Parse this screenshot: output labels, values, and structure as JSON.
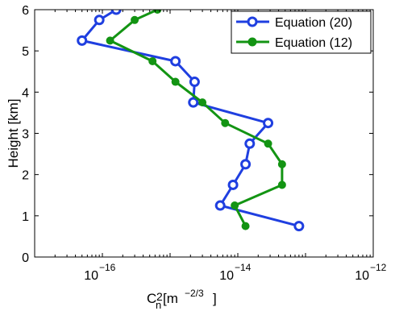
{
  "chart_data": {
    "type": "line",
    "xlabel": "C",
    "xlabel_sub": "n",
    "xlabel_sup": "2",
    "xlabel_unit_open": " [m",
    "xlabel_unit_exp": "−2/3",
    "xlabel_unit_close": "]",
    "ylabel": "Height [km]",
    "xscale": "log",
    "xlim": [
      1e-17,
      1e-12
    ],
    "ylim": [
      0,
      6
    ],
    "x_tick_labels": [
      {
        "value": 1e-16,
        "base": "10",
        "exp": "−16"
      },
      {
        "value": 1e-14,
        "base": "10",
        "exp": "−14"
      },
      {
        "value": 1e-12,
        "base": "10",
        "exp": "−12"
      }
    ],
    "y_ticks": [
      0,
      1,
      2,
      3,
      4,
      5,
      6
    ],
    "grid": false,
    "legend_position": "top-right",
    "series": [
      {
        "name": "Equation (20)",
        "color": "#1f3fe0",
        "marker": "open-circle",
        "points": [
          {
            "x": 8e-14,
            "y": 0.75
          },
          {
            "x": 5.5e-15,
            "y": 1.25
          },
          {
            "x": 8.5e-15,
            "y": 1.75
          },
          {
            "x": 1.3e-14,
            "y": 2.25
          },
          {
            "x": 1.5e-14,
            "y": 2.75
          },
          {
            "x": 2.8e-14,
            "y": 3.25
          },
          {
            "x": 2.2e-15,
            "y": 3.75
          },
          {
            "x": 2.3e-15,
            "y": 4.25
          },
          {
            "x": 1.2e-15,
            "y": 4.75
          },
          {
            "x": 5e-17,
            "y": 5.25
          },
          {
            "x": 9e-17,
            "y": 5.75
          },
          {
            "x": 1.6e-16,
            "y": 6.0
          }
        ]
      },
      {
        "name": "Equation (12)",
        "color": "#139413",
        "marker": "filled-circle",
        "points": [
          {
            "x": 1.3e-14,
            "y": 0.75
          },
          {
            "x": 9e-15,
            "y": 1.25
          },
          {
            "x": 4.5e-14,
            "y": 1.75
          },
          {
            "x": 4.5e-14,
            "y": 2.25
          },
          {
            "x": 2.8e-14,
            "y": 2.75
          },
          {
            "x": 6.5e-15,
            "y": 3.25
          },
          {
            "x": 3e-15,
            "y": 3.75
          },
          {
            "x": 1.2e-15,
            "y": 4.25
          },
          {
            "x": 5.5e-16,
            "y": 4.75
          },
          {
            "x": 1.3e-16,
            "y": 5.25
          },
          {
            "x": 3e-16,
            "y": 5.75
          },
          {
            "x": 6.5e-16,
            "y": 6.0
          }
        ]
      }
    ]
  }
}
